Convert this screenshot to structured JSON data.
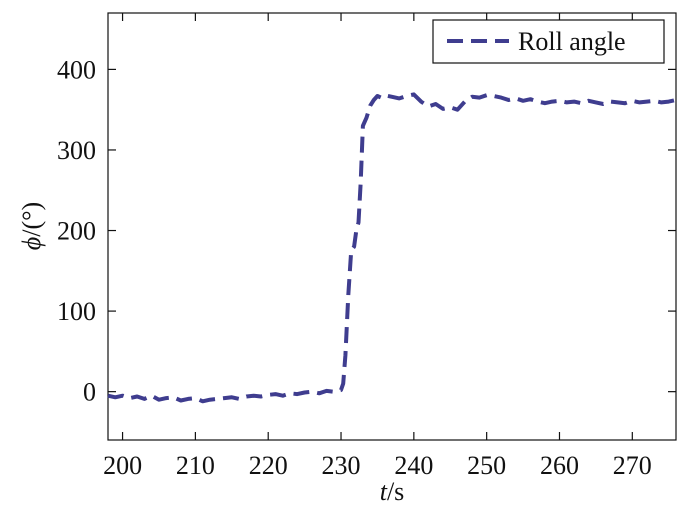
{
  "chart_data": {
    "type": "line",
    "xlabel_italic": "t",
    "xlabel_rest": "/s",
    "ylabel_italic": "ϕ",
    "ylabel_rest": "/(°)",
    "xlim": [
      198,
      276
    ],
    "ylim": [
      -60,
      470
    ],
    "xticks": [
      200,
      210,
      220,
      230,
      240,
      250,
      260,
      270
    ],
    "yticks": [
      0,
      100,
      200,
      300,
      400
    ],
    "grid": false,
    "legend_position": "top-right",
    "series": [
      {
        "name": "Roll angle",
        "color": "#3f3d8f",
        "style": "dashed",
        "x": [
          198,
          199,
          200,
          201,
          202,
          203,
          204,
          205,
          206,
          207,
          208,
          209,
          210,
          211,
          212,
          213,
          214,
          215,
          216,
          217,
          218,
          219,
          220,
          221,
          222,
          223,
          224,
          225,
          226,
          227,
          228,
          229,
          230,
          230.3,
          230.6,
          231,
          231.4,
          231.8,
          232.1,
          232.4,
          232.7,
          233,
          233.5,
          234,
          234.5,
          235,
          235.5,
          236,
          237,
          238,
          239,
          240,
          241,
          242,
          243,
          244,
          245,
          246,
          247,
          248,
          249,
          250,
          251,
          252,
          253,
          254,
          255,
          256,
          257,
          258,
          259,
          260,
          261,
          262,
          263,
          264,
          265,
          266,
          267,
          268,
          269,
          270,
          271,
          272,
          273,
          274,
          275,
          276
        ],
        "y": [
          -5,
          -7,
          -5,
          -8,
          -6,
          -9,
          -5,
          -10,
          -8,
          -7,
          -11,
          -9,
          -8,
          -12,
          -10,
          -9,
          -8,
          -7,
          -9,
          -6,
          -5,
          -6,
          -4,
          -3,
          -5,
          -2,
          -3,
          -1,
          0,
          -2,
          1,
          0,
          2,
          10,
          45,
          120,
          175,
          180,
          200,
          210,
          260,
          330,
          340,
          355,
          362,
          367,
          365,
          368,
          366,
          364,
          367,
          369,
          360,
          354,
          357,
          351,
          353,
          350,
          360,
          366,
          365,
          368,
          367,
          365,
          362,
          364,
          361,
          363,
          360,
          358,
          360,
          361,
          359,
          360,
          358,
          361,
          359,
          357,
          360,
          359,
          358,
          361,
          359,
          360,
          361,
          359,
          360,
          362
        ]
      }
    ]
  }
}
